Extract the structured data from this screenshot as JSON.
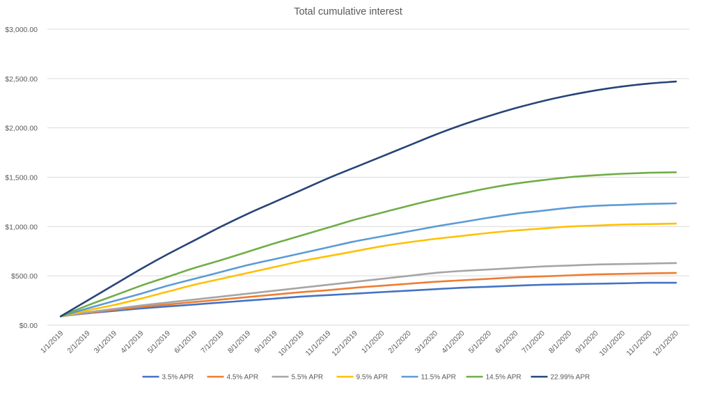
{
  "chart_data": {
    "type": "line",
    "title": "Total cumulative interest",
    "xlabel": "",
    "ylabel": "",
    "categories": [
      "1/1/2019",
      "2/1/2019",
      "3/1/2019",
      "4/1/2019",
      "5/1/2019",
      "6/1/2019",
      "7/1/2019",
      "8/1/2019",
      "9/1/2019",
      "10/1/2019",
      "11/1/2019",
      "12/1/2019",
      "1/1/2020",
      "2/1/2020",
      "3/1/2020",
      "4/1/2020",
      "5/1/2020",
      "6/1/2020",
      "7/1/2020",
      "8/1/2020",
      "9/1/2020",
      "10/1/2020",
      "11/1/2020",
      "12/1/2020"
    ],
    "ylim": [
      0,
      3000
    ],
    "yticks": [
      0,
      500,
      1000,
      1500,
      2000,
      2500,
      3000
    ],
    "ytick_labels": [
      "$0.00",
      "$500.00",
      "$1,000.00",
      "$1,500.00",
      "$2,000.00",
      "$2,500.00",
      "$3,000.00"
    ],
    "grid": true,
    "legend_position": "bottom",
    "series": [
      {
        "name": "3.5% APR",
        "color": "#4472c4",
        "values": [
          90,
          120,
          145,
          170,
          190,
          210,
          230,
          250,
          270,
          290,
          305,
          320,
          335,
          350,
          365,
          380,
          390,
          400,
          410,
          415,
          420,
          425,
          430,
          430
        ]
      },
      {
        "name": "4.5% APR",
        "color": "#ed7d31",
        "values": [
          90,
          125,
          155,
          185,
          210,
          235,
          260,
          285,
          310,
          335,
          355,
          380,
          400,
          420,
          440,
          455,
          470,
          485,
          495,
          505,
          515,
          520,
          525,
          530
        ]
      },
      {
        "name": "5.5% APR",
        "color": "#a5a5a5",
        "values": [
          90,
          130,
          165,
          200,
          230,
          260,
          290,
          320,
          350,
          380,
          410,
          440,
          470,
          500,
          530,
          550,
          565,
          580,
          595,
          605,
          615,
          620,
          625,
          630
        ]
      },
      {
        "name": "9.5% APR",
        "color": "#ffc000",
        "values": [
          90,
          150,
          205,
          270,
          340,
          410,
          470,
          530,
          590,
          650,
          700,
          750,
          800,
          840,
          875,
          905,
          935,
          960,
          980,
          1000,
          1010,
          1020,
          1025,
          1030
        ]
      },
      {
        "name": "11.5% APR",
        "color": "#5b9bd5",
        "values": [
          90,
          170,
          245,
          320,
          400,
          470,
          540,
          610,
          670,
          730,
          790,
          850,
          900,
          950,
          1000,
          1045,
          1090,
          1130,
          1160,
          1190,
          1210,
          1220,
          1230,
          1235
        ]
      },
      {
        "name": "14.5% APR",
        "color": "#70ad47",
        "values": [
          90,
          200,
          300,
          400,
          490,
          580,
          660,
          745,
          830,
          910,
          990,
          1070,
          1140,
          1210,
          1275,
          1335,
          1390,
          1435,
          1470,
          1500,
          1520,
          1535,
          1545,
          1550
        ]
      },
      {
        "name": "22.99% APR",
        "color": "#264478",
        "values": [
          90,
          250,
          410,
          570,
          720,
          860,
          1000,
          1130,
          1250,
          1370,
          1490,
          1600,
          1710,
          1820,
          1930,
          2030,
          2120,
          2200,
          2270,
          2330,
          2380,
          2420,
          2450,
          2470
        ]
      }
    ]
  }
}
